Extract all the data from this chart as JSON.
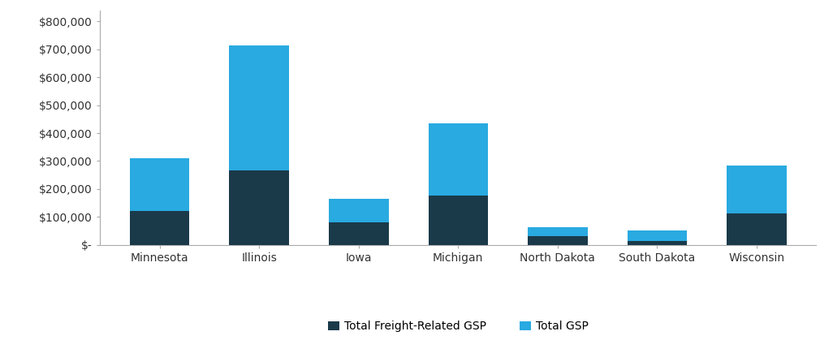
{
  "categories": [
    "Minnesota",
    "Illinois",
    "Iowa",
    "Michigan",
    "North Dakota",
    "South Dakota",
    "Wisconsin"
  ],
  "freight_gsp": [
    120000,
    265000,
    80000,
    175000,
    30000,
    15000,
    112000
  ],
  "total_gsp": [
    310000,
    715000,
    165000,
    435000,
    63000,
    52000,
    285000
  ],
  "freight_color": "#1a3a4a",
  "total_color": "#29aae1",
  "ylabel_ticks": [
    0,
    100000,
    200000,
    300000,
    400000,
    500000,
    600000,
    700000,
    800000
  ],
  "ylim": [
    0,
    840000
  ],
  "legend_labels": [
    "Total Freight-Related GSP",
    "Total GSP"
  ],
  "background_color": "#ffffff",
  "bar_width": 0.6,
  "spine_color": "#aaaaaa",
  "tick_color": "#555555",
  "font_size": 10
}
